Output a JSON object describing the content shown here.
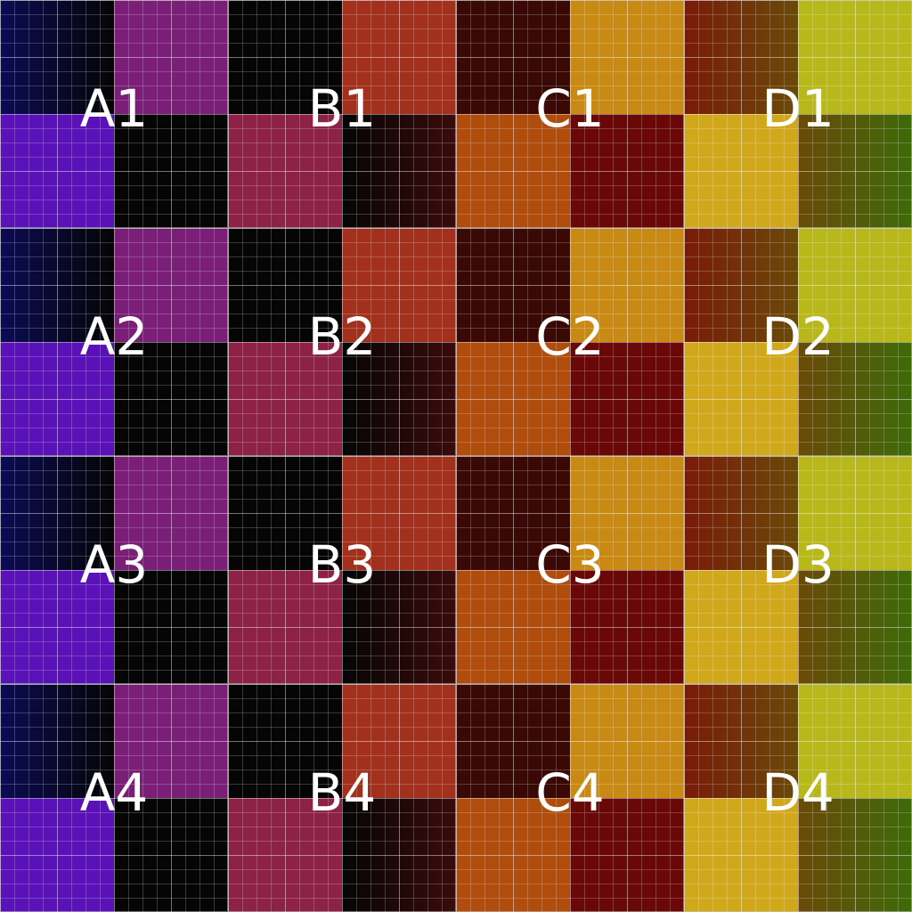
{
  "tiles": [
    {
      "label": "A1"
    },
    {
      "label": "B1"
    },
    {
      "label": "C1"
    },
    {
      "label": "D1"
    },
    {
      "label": "A2"
    },
    {
      "label": "B2"
    },
    {
      "label": "C2"
    },
    {
      "label": "D2"
    },
    {
      "label": "A3"
    },
    {
      "label": "B3"
    },
    {
      "label": "C3"
    },
    {
      "label": "D3"
    },
    {
      "label": "A4"
    },
    {
      "label": "B4"
    },
    {
      "label": "C4"
    },
    {
      "label": "D4"
    }
  ],
  "columns": {
    "A": {
      "top_left": [
        "#0b0b55",
        "#050505"
      ],
      "top_right": [
        "#7a1e78",
        "#7a1e78"
      ],
      "bottom_left": [
        "#5a12b8",
        "#5a12b8"
      ],
      "bottom_right": [
        "#050505",
        "#050505"
      ]
    },
    "B": {
      "top_left": [
        "#050505",
        "#050505"
      ],
      "top_right": [
        "#a2301c",
        "#a2301c"
      ],
      "bottom_left": [
        "#8e2246",
        "#8e2246"
      ],
      "bottom_right": [
        "#050505",
        "#3a0b0b"
      ]
    },
    "C": {
      "top_left": [
        "#3a0805",
        "#3a0805"
      ],
      "top_right": [
        "#c98a14",
        "#c98a14"
      ],
      "bottom_left": [
        "#b04c0c",
        "#b04c0c"
      ],
      "bottom_right": [
        "#6a0808",
        "#6a0808"
      ]
    },
    "D": {
      "top_left": [
        "#7a1a08",
        "#6a4a08"
      ],
      "top_right": [
        "#b8b81a",
        "#b8b81a"
      ],
      "bottom_left": [
        "#d0a81a",
        "#d0a81a"
      ],
      "bottom_right": [
        "#6a4a08",
        "#3e6a08"
      ]
    }
  }
}
